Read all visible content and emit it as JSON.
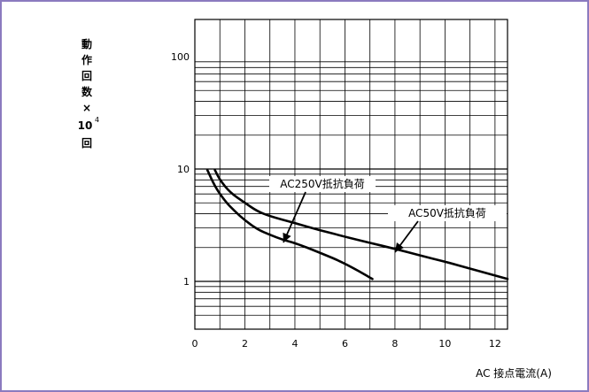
{
  "chart_data": {
    "type": "line",
    "title": "",
    "xlabel": "AC 接点電流(A)",
    "ylabel_chars": [
      "動",
      "作",
      "回",
      "数",
      "×"
    ],
    "ylabel_unit_base": "10",
    "ylabel_unit_exp": "4",
    "ylabel_unit_suffix": "回",
    "xlim": [
      0,
      12.5
    ],
    "ylim": [
      0.45,
      100
    ],
    "yscale": "log",
    "x_ticks": [
      0,
      2,
      4,
      6,
      8,
      10,
      12
    ],
    "x_tick_labels": [
      "0",
      "2",
      "4",
      "6",
      "8",
      "10",
      "12"
    ],
    "y_ticks": [
      1,
      10,
      100
    ],
    "y_tick_labels": [
      "1",
      "10",
      "100"
    ],
    "grid": true,
    "series": [
      {
        "name": "AC250V抵抗負荷",
        "x": [
          0.5,
          0.8,
          1.2,
          1.6,
          2.0,
          2.5,
          3.0,
          3.5,
          4.0,
          5.0,
          6.0,
          7.1
        ],
        "y": [
          9.8,
          7.0,
          5.2,
          4.2,
          3.5,
          2.9,
          2.6,
          2.35,
          2.2,
          1.8,
          1.45,
          1.05
        ]
      },
      {
        "name": "AC50V抵抗負荷",
        "x": [
          0.8,
          1.0,
          1.4,
          2.0,
          2.5,
          3.0,
          4.0,
          5.0,
          6.0,
          7.0,
          8.0,
          9.0,
          10.0,
          11.0,
          12.5
        ],
        "y": [
          9.8,
          8.0,
          6.2,
          5.0,
          4.2,
          3.8,
          3.3,
          2.85,
          2.5,
          2.2,
          1.95,
          1.7,
          1.5,
          1.3,
          1.05
        ]
      }
    ],
    "annotations": [
      {
        "text": "AC250V抵抗負荷",
        "x": 3.15,
        "y": 2.6
      },
      {
        "text": "AC50V抵抗負荷",
        "x": 8.0,
        "y": 2.05
      }
    ]
  }
}
